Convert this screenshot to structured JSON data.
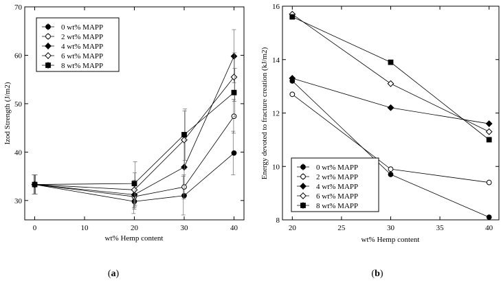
{
  "chart_data": [
    {
      "type": "line",
      "panel_label": "(a)",
      "panel_letter": "a",
      "xlabel": "wt% Hemp content",
      "ylabel": "Izod Strength (J/m2)",
      "xlim": [
        -2,
        42
      ],
      "ylim": [
        26,
        70
      ],
      "xticks": [
        0,
        10,
        20,
        30,
        40
      ],
      "yticks": [
        30,
        40,
        50,
        60,
        70
      ],
      "legend_position": "top-left",
      "x": [
        0,
        20,
        30,
        40
      ],
      "series": [
        {
          "name": "0 wt% MAPP",
          "marker": "circle-filled",
          "values": [
            33.3,
            29.8,
            31.0,
            39.8
          ],
          "err_low": [
            2.0,
            2.5,
            4.0,
            4.5
          ],
          "err_high": [
            2.0,
            2.5,
            4.0,
            4.5
          ]
        },
        {
          "name": "2 wt% MAPP",
          "marker": "circle-open",
          "values": [
            33.3,
            30.8,
            32.8,
            47.4
          ],
          "err_low": [
            2.0,
            2.3,
            2.5,
            3.5
          ],
          "err_high": [
            2.0,
            2.3,
            2.5,
            3.5
          ]
        },
        {
          "name": "4 wt% MAPP",
          "marker": "diamond-filled",
          "values": [
            33.3,
            31.2,
            36.9,
            59.8
          ],
          "err_low": [
            2.0,
            3.0,
            5.5,
            5.5
          ],
          "err_high": [
            2.0,
            3.0,
            5.5,
            5.5
          ]
        },
        {
          "name": "6 wt% MAPP",
          "marker": "diamond-open",
          "values": [
            33.3,
            32.2,
            42.5,
            55.5
          ],
          "err_low": [
            2.0,
            3.5,
            6.0,
            5.0
          ],
          "err_high": [
            2.0,
            3.5,
            6.0,
            5.0
          ]
        },
        {
          "name": "8 wt% MAPP",
          "marker": "square-filled",
          "values": [
            33.3,
            33.5,
            43.6,
            52.3
          ],
          "err_low": [
            2.0,
            4.5,
            5.3,
            5.0
          ],
          "err_high": [
            2.0,
            4.5,
            5.3,
            5.0
          ]
        }
      ]
    },
    {
      "type": "line",
      "panel_label": "(b)",
      "panel_letter": "b",
      "xlabel": "wt% Hemp content",
      "ylabel": "Energy devoted to fracture creation (kJ/m2)",
      "xlim": [
        19,
        41
      ],
      "ylim": [
        8,
        16
      ],
      "xticks": [
        20,
        25,
        30,
        35,
        40
      ],
      "yticks": [
        8,
        10,
        12,
        14,
        16
      ],
      "legend_position": "bottom-left",
      "x": [
        20,
        30,
        40
      ],
      "series": [
        {
          "name": "0 wt% MAPP",
          "marker": "circle-filled",
          "values": [
            13.2,
            9.7,
            8.1
          ]
        },
        {
          "name": "2 wt% MAPP",
          "marker": "circle-open",
          "values": [
            12.7,
            9.9,
            9.4
          ]
        },
        {
          "name": "4 wt% MAPP",
          "marker": "diamond-filled",
          "values": [
            13.3,
            12.2,
            11.6
          ]
        },
        {
          "name": "6 wt% MAPP",
          "marker": "diamond-open",
          "values": [
            15.7,
            13.1,
            11.3
          ]
        },
        {
          "name": "8 wt% MAPP",
          "marker": "square-filled",
          "values": [
            15.6,
            13.9,
            11.0
          ]
        }
      ]
    }
  ]
}
